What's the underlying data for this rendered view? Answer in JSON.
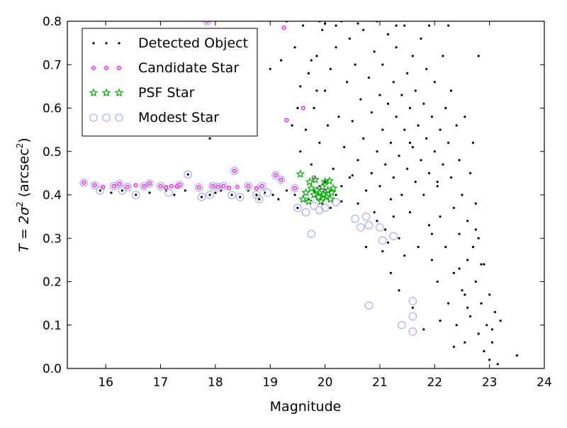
{
  "chart_data": {
    "type": "scatter",
    "title": "",
    "xlabel": "Magnitude",
    "ylabel": {
      "prefix": "T = 2",
      "sigma": "σ",
      "sq": "2",
      "unit_open": " (arcsec",
      "unit_sq": "2",
      "unit_close": ")"
    },
    "xlim": [
      15.3,
      24.0
    ],
    "ylim": [
      0.0,
      0.8
    ],
    "xticks": [
      "16",
      "17",
      "18",
      "19",
      "20",
      "21",
      "22",
      "23",
      "24"
    ],
    "yticks": [
      "0.0",
      "0.1",
      "0.2",
      "0.3",
      "0.4",
      "0.5",
      "0.6",
      "0.7",
      "0.8"
    ],
    "grid": false,
    "legend_position": "top-left",
    "series": [
      {
        "name": "Detected Object",
        "marker": "dot",
        "color": "#000000",
        "points": [
          [
            15.9,
            0.41
          ],
          [
            16.1,
            0.405
          ],
          [
            16.3,
            0.41
          ],
          [
            16.55,
            0.4
          ],
          [
            16.8,
            0.405
          ],
          [
            17.1,
            0.41
          ],
          [
            17.25,
            0.4
          ],
          [
            17.45,
            0.41
          ],
          [
            17.5,
            0.447
          ],
          [
            17.75,
            0.395
          ],
          [
            17.9,
            0.4
          ],
          [
            18.0,
            0.405
          ],
          [
            18.1,
            0.41
          ],
          [
            18.3,
            0.4
          ],
          [
            18.45,
            0.395
          ],
          [
            18.6,
            0.41
          ],
          [
            18.75,
            0.4
          ],
          [
            18.8,
            0.39
          ],
          [
            18.9,
            0.405
          ],
          [
            19.05,
            0.4
          ],
          [
            19.15,
            0.39
          ],
          [
            19.3,
            0.41
          ],
          [
            19.45,
            0.4
          ],
          [
            19.5,
            0.37
          ],
          [
            17.9,
            0.53
          ],
          [
            18.0,
            0.55
          ],
          [
            19.0,
            0.69
          ],
          [
            19.2,
            0.71
          ],
          [
            19.3,
            0.8
          ],
          [
            19.4,
            0.56
          ],
          [
            19.45,
            0.74
          ],
          [
            19.5,
            0.6
          ],
          [
            19.55,
            0.5
          ],
          [
            19.55,
            0.65
          ],
          [
            19.6,
            0.79
          ],
          [
            19.65,
            0.55
          ],
          [
            19.7,
            0.68
          ],
          [
            19.75,
            0.47
          ],
          [
            19.8,
            0.6
          ],
          [
            19.85,
            0.72
          ],
          [
            19.9,
            0.52
          ],
          [
            19.9,
            0.42
          ],
          [
            19.95,
            0.78
          ],
          [
            20.0,
            0.64
          ],
          [
            20.05,
            0.56
          ],
          [
            20.1,
            0.69
          ],
          [
            20.15,
            0.46
          ],
          [
            20.2,
            0.74
          ],
          [
            20.25,
            0.58
          ],
          [
            20.3,
            0.8
          ],
          [
            20.3,
            0.42
          ],
          [
            20.35,
            0.51
          ],
          [
            20.4,
            0.66
          ],
          [
            20.45,
            0.44
          ],
          [
            20.45,
            0.76
          ],
          [
            20.5,
            0.57
          ],
          [
            20.55,
            0.7
          ],
          [
            20.6,
            0.48
          ],
          [
            20.6,
            0.38
          ],
          [
            20.65,
            0.62
          ],
          [
            20.7,
            0.78
          ],
          [
            20.7,
            0.53
          ],
          [
            20.75,
            0.41
          ],
          [
            20.8,
            0.67
          ],
          [
            20.85,
            0.45
          ],
          [
            20.85,
            0.59
          ],
          [
            20.9,
            0.73
          ],
          [
            20.9,
            0.36
          ],
          [
            20.95,
            0.5
          ],
          [
            20.95,
            0.8
          ],
          [
            21.0,
            0.63
          ],
          [
            21.0,
            0.42
          ],
          [
            21.05,
            0.55
          ],
          [
            21.05,
            0.7
          ],
          [
            21.1,
            0.47
          ],
          [
            21.1,
            0.32
          ],
          [
            21.15,
            0.61
          ],
          [
            21.15,
            0.77
          ],
          [
            21.2,
            0.52
          ],
          [
            21.2,
            0.39
          ],
          [
            21.25,
            0.66
          ],
          [
            21.25,
            0.44
          ],
          [
            21.3,
            0.58
          ],
          [
            21.3,
            0.74
          ],
          [
            21.35,
            0.49
          ],
          [
            21.35,
            0.3
          ],
          [
            21.4,
            0.63
          ],
          [
            21.4,
            0.4
          ],
          [
            21.45,
            0.55
          ],
          [
            21.45,
            0.79
          ],
          [
            21.5,
            0.68
          ],
          [
            21.5,
            0.46
          ],
          [
            21.55,
            0.6
          ],
          [
            21.55,
            0.36
          ],
          [
            21.6,
            0.51
          ],
          [
            21.6,
            0.72
          ],
          [
            21.65,
            0.43
          ],
          [
            21.65,
            0.64
          ],
          [
            21.7,
            0.56
          ],
          [
            21.7,
            0.28
          ],
          [
            21.75,
            0.48
          ],
          [
            21.75,
            0.76
          ],
          [
            21.8,
            0.61
          ],
          [
            21.8,
            0.4
          ],
          [
            21.85,
            0.53
          ],
          [
            21.85,
            0.69
          ],
          [
            21.9,
            0.45
          ],
          [
            21.9,
            0.33
          ],
          [
            21.95,
            0.58
          ],
          [
            21.95,
            0.25
          ],
          [
            22.0,
            0.5
          ],
          [
            22.0,
            0.66
          ],
          [
            22.05,
            0.42
          ],
          [
            22.05,
            0.2
          ],
          [
            22.1,
            0.55
          ],
          [
            22.1,
            0.35
          ],
          [
            22.15,
            0.47
          ],
          [
            22.15,
            0.72
          ],
          [
            22.2,
            0.6
          ],
          [
            22.2,
            0.28
          ],
          [
            22.25,
            0.52
          ],
          [
            22.25,
            0.15
          ],
          [
            22.3,
            0.44
          ],
          [
            22.3,
            0.64
          ],
          [
            22.35,
            0.37
          ],
          [
            22.35,
            0.22
          ],
          [
            22.4,
            0.56
          ],
          [
            22.4,
            0.1
          ],
          [
            22.45,
            0.48
          ],
          [
            22.45,
            0.31
          ],
          [
            22.5,
            0.4
          ],
          [
            22.5,
            0.18
          ],
          [
            22.55,
            0.58
          ],
          [
            22.55,
            0.06
          ],
          [
            22.6,
            0.34
          ],
          [
            22.6,
            0.25
          ],
          [
            22.65,
            0.45
          ],
          [
            22.65,
            0.12
          ],
          [
            22.7,
            0.28
          ],
          [
            22.7,
            0.52
          ],
          [
            22.75,
            0.2
          ],
          [
            22.75,
            0.38
          ],
          [
            22.8,
            0.08
          ],
          [
            22.8,
            0.3
          ],
          [
            22.85,
            0.15
          ],
          [
            22.9,
            0.24
          ],
          [
            22.9,
            0.04
          ],
          [
            22.95,
            0.1
          ],
          [
            23.0,
            0.17
          ],
          [
            23.0,
            0.02
          ],
          [
            23.05,
            0.06
          ],
          [
            23.1,
            0.13
          ],
          [
            23.15,
            0.01
          ],
          [
            23.2,
            0.11
          ],
          [
            23.5,
            0.03
          ],
          [
            22.25,
            0.79
          ],
          [
            22.8,
            0.72
          ],
          [
            21.9,
            0.79
          ],
          [
            21.3,
            0.79
          ],
          [
            20.6,
            0.795
          ],
          [
            20.0,
            0.795
          ],
          [
            19.9,
            0.8
          ],
          [
            20.2,
            0.79
          ],
          [
            19.75,
            0.71
          ],
          [
            19.85,
            0.64
          ],
          [
            20.5,
            0.445
          ],
          [
            20.2,
            0.4
          ],
          [
            20.1,
            0.37
          ],
          [
            20.0,
            0.43
          ],
          [
            19.95,
            0.38
          ],
          [
            19.8,
            0.41
          ],
          [
            19.7,
            0.39
          ],
          [
            20.3,
            0.385
          ],
          [
            21.2,
            0.22
          ],
          [
            21.35,
            0.18
          ],
          [
            21.6,
            0.14
          ],
          [
            21.45,
            0.26
          ],
          [
            21.05,
            0.27
          ],
          [
            21.25,
            0.35
          ],
          [
            22.1,
            0.11
          ],
          [
            22.35,
            0.05
          ],
          [
            21.8,
            0.09
          ],
          [
            22.55,
            0.17
          ],
          [
            22.05,
            0.43
          ],
          [
            21.55,
            0.52
          ],
          [
            21.95,
            0.31
          ],
          [
            22.45,
            0.23
          ],
          [
            23.05,
            0.09
          ],
          [
            22.75,
            0.32
          ],
          [
            22.6,
            0.14
          ],
          [
            22.85,
            0.24
          ],
          [
            20.95,
            0.34
          ],
          [
            21.15,
            0.29
          ],
          [
            20.75,
            0.28
          ]
        ]
      },
      {
        "name": "Candidate Star",
        "marker": "circle-small",
        "color": "#ff00ff",
        "points": [
          [
            15.6,
            0.428
          ],
          [
            15.8,
            0.422
          ],
          [
            15.95,
            0.418
          ],
          [
            16.15,
            0.42
          ],
          [
            16.25,
            0.425
          ],
          [
            16.4,
            0.418
          ],
          [
            16.55,
            0.422
          ],
          [
            16.7,
            0.42
          ],
          [
            16.8,
            0.426
          ],
          [
            17.0,
            0.42
          ],
          [
            17.1,
            0.417
          ],
          [
            17.2,
            0.42
          ],
          [
            17.3,
            0.419
          ],
          [
            17.35,
            0.423
          ],
          [
            17.7,
            0.417
          ],
          [
            17.85,
            0.8
          ],
          [
            17.95,
            0.42
          ],
          [
            18.05,
            0.418
          ],
          [
            18.15,
            0.42
          ],
          [
            18.25,
            0.416
          ],
          [
            18.35,
            0.455
          ],
          [
            18.4,
            0.418
          ],
          [
            18.6,
            0.42
          ],
          [
            18.75,
            0.415
          ],
          [
            18.85,
            0.42
          ],
          [
            19.1,
            0.445
          ],
          [
            19.2,
            0.435
          ],
          [
            19.25,
            0.785
          ],
          [
            19.3,
            0.572
          ],
          [
            19.45,
            0.415
          ],
          [
            19.6,
            0.6
          ],
          [
            19.8,
            0.44
          ],
          [
            19.9,
            0.415
          ],
          [
            20.0,
            0.41
          ]
        ]
      },
      {
        "name": "PSF Star",
        "marker": "star",
        "color": "#00aa00",
        "points": [
          [
            19.55,
            0.448
          ],
          [
            19.6,
            0.39
          ],
          [
            19.65,
            0.405
          ],
          [
            19.7,
            0.385
          ],
          [
            19.75,
            0.415
          ],
          [
            19.8,
            0.4
          ],
          [
            19.82,
            0.435
          ],
          [
            19.85,
            0.41
          ],
          [
            19.88,
            0.395
          ],
          [
            19.9,
            0.405
          ],
          [
            19.93,
            0.385
          ],
          [
            19.95,
            0.418
          ],
          [
            19.98,
            0.4
          ],
          [
            20.0,
            0.43
          ],
          [
            20.02,
            0.395
          ],
          [
            20.05,
            0.41
          ],
          [
            20.08,
            0.432
          ],
          [
            20.1,
            0.39
          ],
          [
            20.12,
            0.405
          ],
          [
            19.72,
            0.43
          ],
          [
            20.15,
            0.415
          ]
        ]
      },
      {
        "name": "Modest Star",
        "marker": "ring",
        "color": "#aaaaff",
        "points": [
          [
            15.6,
            0.428
          ],
          [
            15.8,
            0.422
          ],
          [
            15.9,
            0.41
          ],
          [
            16.15,
            0.42
          ],
          [
            16.25,
            0.425
          ],
          [
            16.3,
            0.41
          ],
          [
            16.4,
            0.418
          ],
          [
            16.55,
            0.4
          ],
          [
            16.7,
            0.42
          ],
          [
            16.8,
            0.426
          ],
          [
            17.0,
            0.42
          ],
          [
            17.15,
            0.405
          ],
          [
            17.35,
            0.423
          ],
          [
            17.5,
            0.447
          ],
          [
            17.7,
            0.417
          ],
          [
            17.75,
            0.395
          ],
          [
            17.9,
            0.4
          ],
          [
            17.85,
            0.8
          ],
          [
            17.95,
            0.42
          ],
          [
            18.05,
            0.418
          ],
          [
            18.15,
            0.42
          ],
          [
            18.3,
            0.4
          ],
          [
            18.35,
            0.455
          ],
          [
            18.45,
            0.395
          ],
          [
            18.6,
            0.42
          ],
          [
            18.75,
            0.4
          ],
          [
            18.8,
            0.39
          ],
          [
            18.85,
            0.42
          ],
          [
            18.95,
            0.405
          ],
          [
            19.1,
            0.445
          ],
          [
            19.2,
            0.435
          ],
          [
            19.45,
            0.415
          ],
          [
            19.5,
            0.37
          ],
          [
            19.65,
            0.36
          ],
          [
            19.8,
            0.375
          ],
          [
            19.9,
            0.365
          ],
          [
            20.0,
            0.37
          ],
          [
            20.2,
            0.383
          ],
          [
            20.55,
            0.345
          ],
          [
            20.65,
            0.325
          ],
          [
            20.8,
            0.33
          ],
          [
            20.75,
            0.35
          ],
          [
            21.0,
            0.325
          ],
          [
            21.05,
            0.295
          ],
          [
            21.25,
            0.305
          ],
          [
            20.8,
            0.145
          ],
          [
            21.4,
            0.1
          ],
          [
            21.6,
            0.155
          ],
          [
            21.6,
            0.12
          ],
          [
            21.6,
            0.085
          ],
          [
            19.75,
            0.31
          ]
        ]
      }
    ]
  }
}
